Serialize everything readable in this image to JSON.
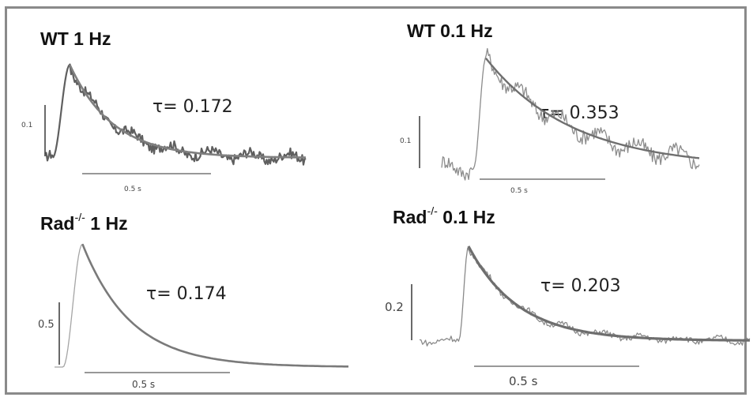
{
  "chart_data": [
    {
      "type": "line",
      "title": "WT 1 Hz",
      "title_main": "WT",
      "title_sup": "",
      "title_rest": " 1 Hz",
      "tau_label": "τ= 0.172",
      "tau": 0.172,
      "scale_bar_y_label": "0.1",
      "scale_bar_y": 0.1,
      "scale_bar_x_label": "0.5 s",
      "scale_bar_x": 0.5,
      "xlim": [
        0,
        1.05
      ],
      "ylim": [
        0,
        0.45
      ],
      "baseline": 0.03,
      "peak_time": 0.1,
      "peak": 0.42,
      "rise_start": 0.03,
      "noise": 0.03,
      "series": [
        {
          "name": "",
          "role": "trace",
          "color": "#5f5f5f"
        },
        {
          "name": "",
          "role": "fit",
          "color": "#7f7f7f"
        }
      ]
    },
    {
      "type": "line",
      "title": "WT 0.1 Hz",
      "title_main": "WT",
      "title_sup": "",
      "title_rest": " 0.1 Hz",
      "tau_label": "τ= 0.353",
      "tau": 0.353,
      "scale_bar_y_label": "0.1",
      "scale_bar_y": 0.1,
      "scale_bar_x_label": "0.5 s",
      "scale_bar_x": 0.5,
      "xlim": [
        0,
        1.05
      ],
      "ylim": [
        0,
        0.55
      ],
      "baseline": 0.03,
      "peak_time": 0.18,
      "peak": 0.5,
      "rise_start": 0.13,
      "noise": 0.045,
      "series": [
        {
          "name": "",
          "role": "trace",
          "color": "#8c8c8c"
        },
        {
          "name": "",
          "role": "fit",
          "color": "#6f6f6f"
        }
      ]
    },
    {
      "type": "line",
      "title": "Rad-/- 1 Hz",
      "title_main": "Rad",
      "title_sup": "-/-",
      "title_rest": " 1 Hz",
      "tau_label": "τ= 0.174",
      "tau": 0.174,
      "scale_bar_y_label": "0.5",
      "scale_bar_y": 0.5,
      "scale_bar_x_label": "0.5 s",
      "scale_bar_x": 0.5,
      "xlim": [
        0,
        1.05
      ],
      "ylim": [
        0,
        1.0
      ],
      "baseline": 0.0,
      "peak_time": 0.1,
      "peak": 0.98,
      "rise_start": 0.03,
      "noise": 0.0,
      "series": [
        {
          "name": "",
          "role": "trace",
          "color": "#a5a5a5"
        },
        {
          "name": "",
          "role": "fit",
          "color": "#7a7a7a"
        }
      ]
    },
    {
      "type": "line",
      "title": "Rad-/- 0.1 Hz",
      "title_main": "Rad",
      "title_sup": "-/-",
      "title_rest": " 0.1 Hz",
      "tau_label": "τ= 0.203",
      "tau": 0.203,
      "scale_bar_y_label": "0.2",
      "scale_bar_y": 0.2,
      "scale_bar_x_label": "0.5 s",
      "scale_bar_x": 0.5,
      "xlim": [
        0,
        1.35
      ],
      "ylim": [
        0,
        0.62
      ],
      "baseline": 0.02,
      "peak_time": 0.2,
      "peak": 0.57,
      "rise_start": 0.16,
      "noise": 0.025,
      "series": [
        {
          "name": "",
          "role": "trace",
          "color": "#8a8a8a"
        },
        {
          "name": "",
          "role": "fit",
          "color": "#6e6e6e"
        }
      ]
    }
  ]
}
